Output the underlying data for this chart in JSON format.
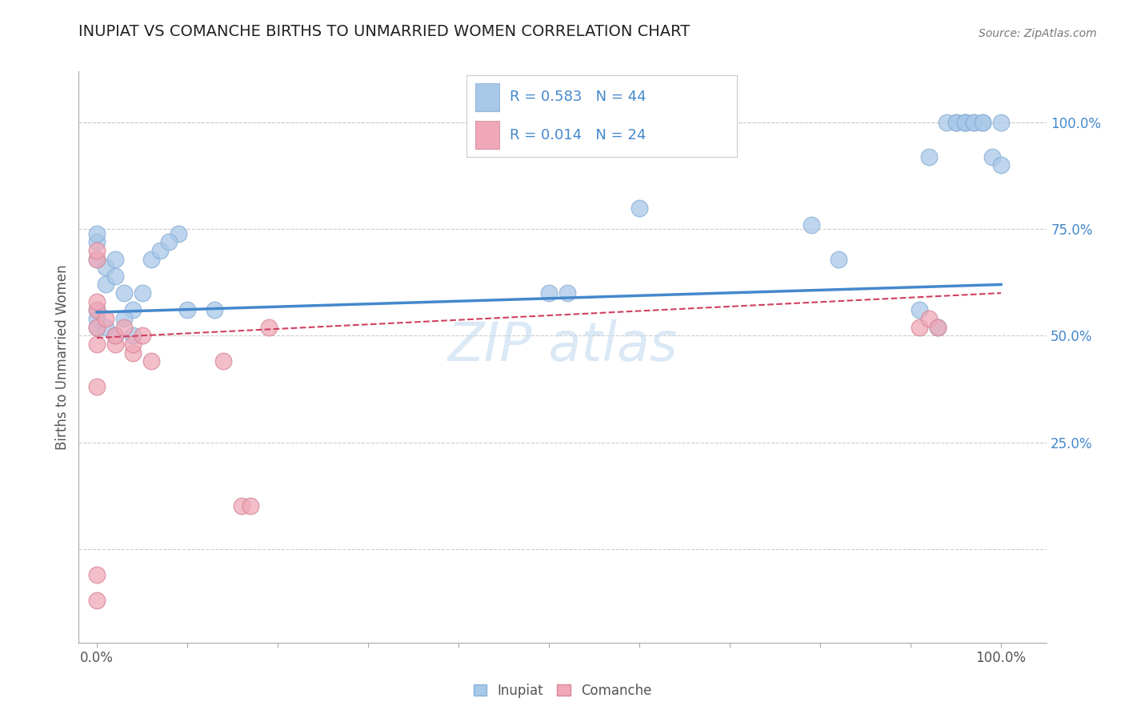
{
  "title": "INUPIAT VS COMANCHE BIRTHS TO UNMARRIED WOMEN CORRELATION CHART",
  "source": "Source: ZipAtlas.com",
  "ylabel": "Births to Unmarried Women",
  "xlim": [
    -0.02,
    1.05
  ],
  "ylim": [
    -0.22,
    1.12
  ],
  "y_tick_vals_right": [
    1.0,
    0.75,
    0.5,
    0.25
  ],
  "background_color": "#ffffff",
  "grid_color": "#cccccc",
  "inupiat_color": "#a8c8e8",
  "comanche_color": "#f0a8b8",
  "inupiat_edge": "#8ab0d8",
  "comanche_edge": "#d88898",
  "inupiat_R": "0.583",
  "inupiat_N": "44",
  "comanche_R": "0.014",
  "comanche_N": "24",
  "legend_box_inupiat": "#a8c8e8",
  "legend_box_comanche": "#f0a8b8",
  "trendline_inupiat_color": "#4488cc",
  "trendline_comanche_color": "#d04060",
  "label_color": "#4488cc",
  "inupiat_points_x": [
    0.0,
    0.0,
    0.0,
    0.01,
    0.01,
    0.02,
    0.02,
    0.03,
    0.04,
    0.05,
    0.06,
    0.07,
    0.09,
    0.1,
    0.13,
    0.5,
    0.52,
    0.6,
    0.79,
    0.82,
    0.91,
    0.92,
    0.94,
    0.95,
    0.95,
    0.96,
    0.96,
    0.96,
    0.97,
    0.97,
    0.98,
    0.98,
    0.99,
    1.0,
    1.0,
    0.0,
    0.0,
    0.0,
    0.01,
    0.02,
    0.03,
    0.04,
    0.08,
    0.93
  ],
  "inupiat_points_y": [
    0.68,
    0.72,
    0.74,
    0.62,
    0.66,
    0.64,
    0.68,
    0.6,
    0.56,
    0.6,
    0.68,
    0.7,
    0.74,
    0.56,
    0.56,
    0.6,
    0.6,
    0.8,
    0.76,
    0.68,
    0.56,
    0.92,
    1.0,
    1.0,
    1.0,
    1.0,
    1.0,
    1.0,
    1.0,
    1.0,
    1.0,
    1.0,
    0.92,
    1.0,
    0.9,
    0.56,
    0.54,
    0.52,
    0.52,
    0.5,
    0.54,
    0.5,
    0.72,
    0.52
  ],
  "comanche_points_x": [
    0.0,
    0.0,
    0.0,
    0.0,
    0.0,
    0.0,
    0.01,
    0.02,
    0.02,
    0.03,
    0.04,
    0.04,
    0.05,
    0.06,
    0.14,
    0.16,
    0.17,
    0.19,
    0.91,
    0.92,
    0.93,
    0.0,
    0.0,
    0.0
  ],
  "comanche_points_y": [
    0.68,
    0.7,
    0.56,
    0.58,
    0.52,
    0.48,
    0.54,
    0.48,
    0.5,
    0.52,
    0.46,
    0.48,
    0.5,
    0.44,
    0.44,
    0.1,
    0.1,
    0.52,
    0.52,
    0.54,
    0.52,
    -0.06,
    -0.12,
    0.38
  ],
  "inupiat_trendline_x": [
    0.0,
    1.0
  ],
  "inupiat_trendline_y": [
    0.555,
    0.62
  ],
  "comanche_trendline_x": [
    0.0,
    1.0
  ],
  "comanche_trendline_y": [
    0.495,
    0.6
  ],
  "bottom_legend_items": [
    "Inupiat",
    "Comanche"
  ],
  "watermark_text": "ZIP atlas"
}
